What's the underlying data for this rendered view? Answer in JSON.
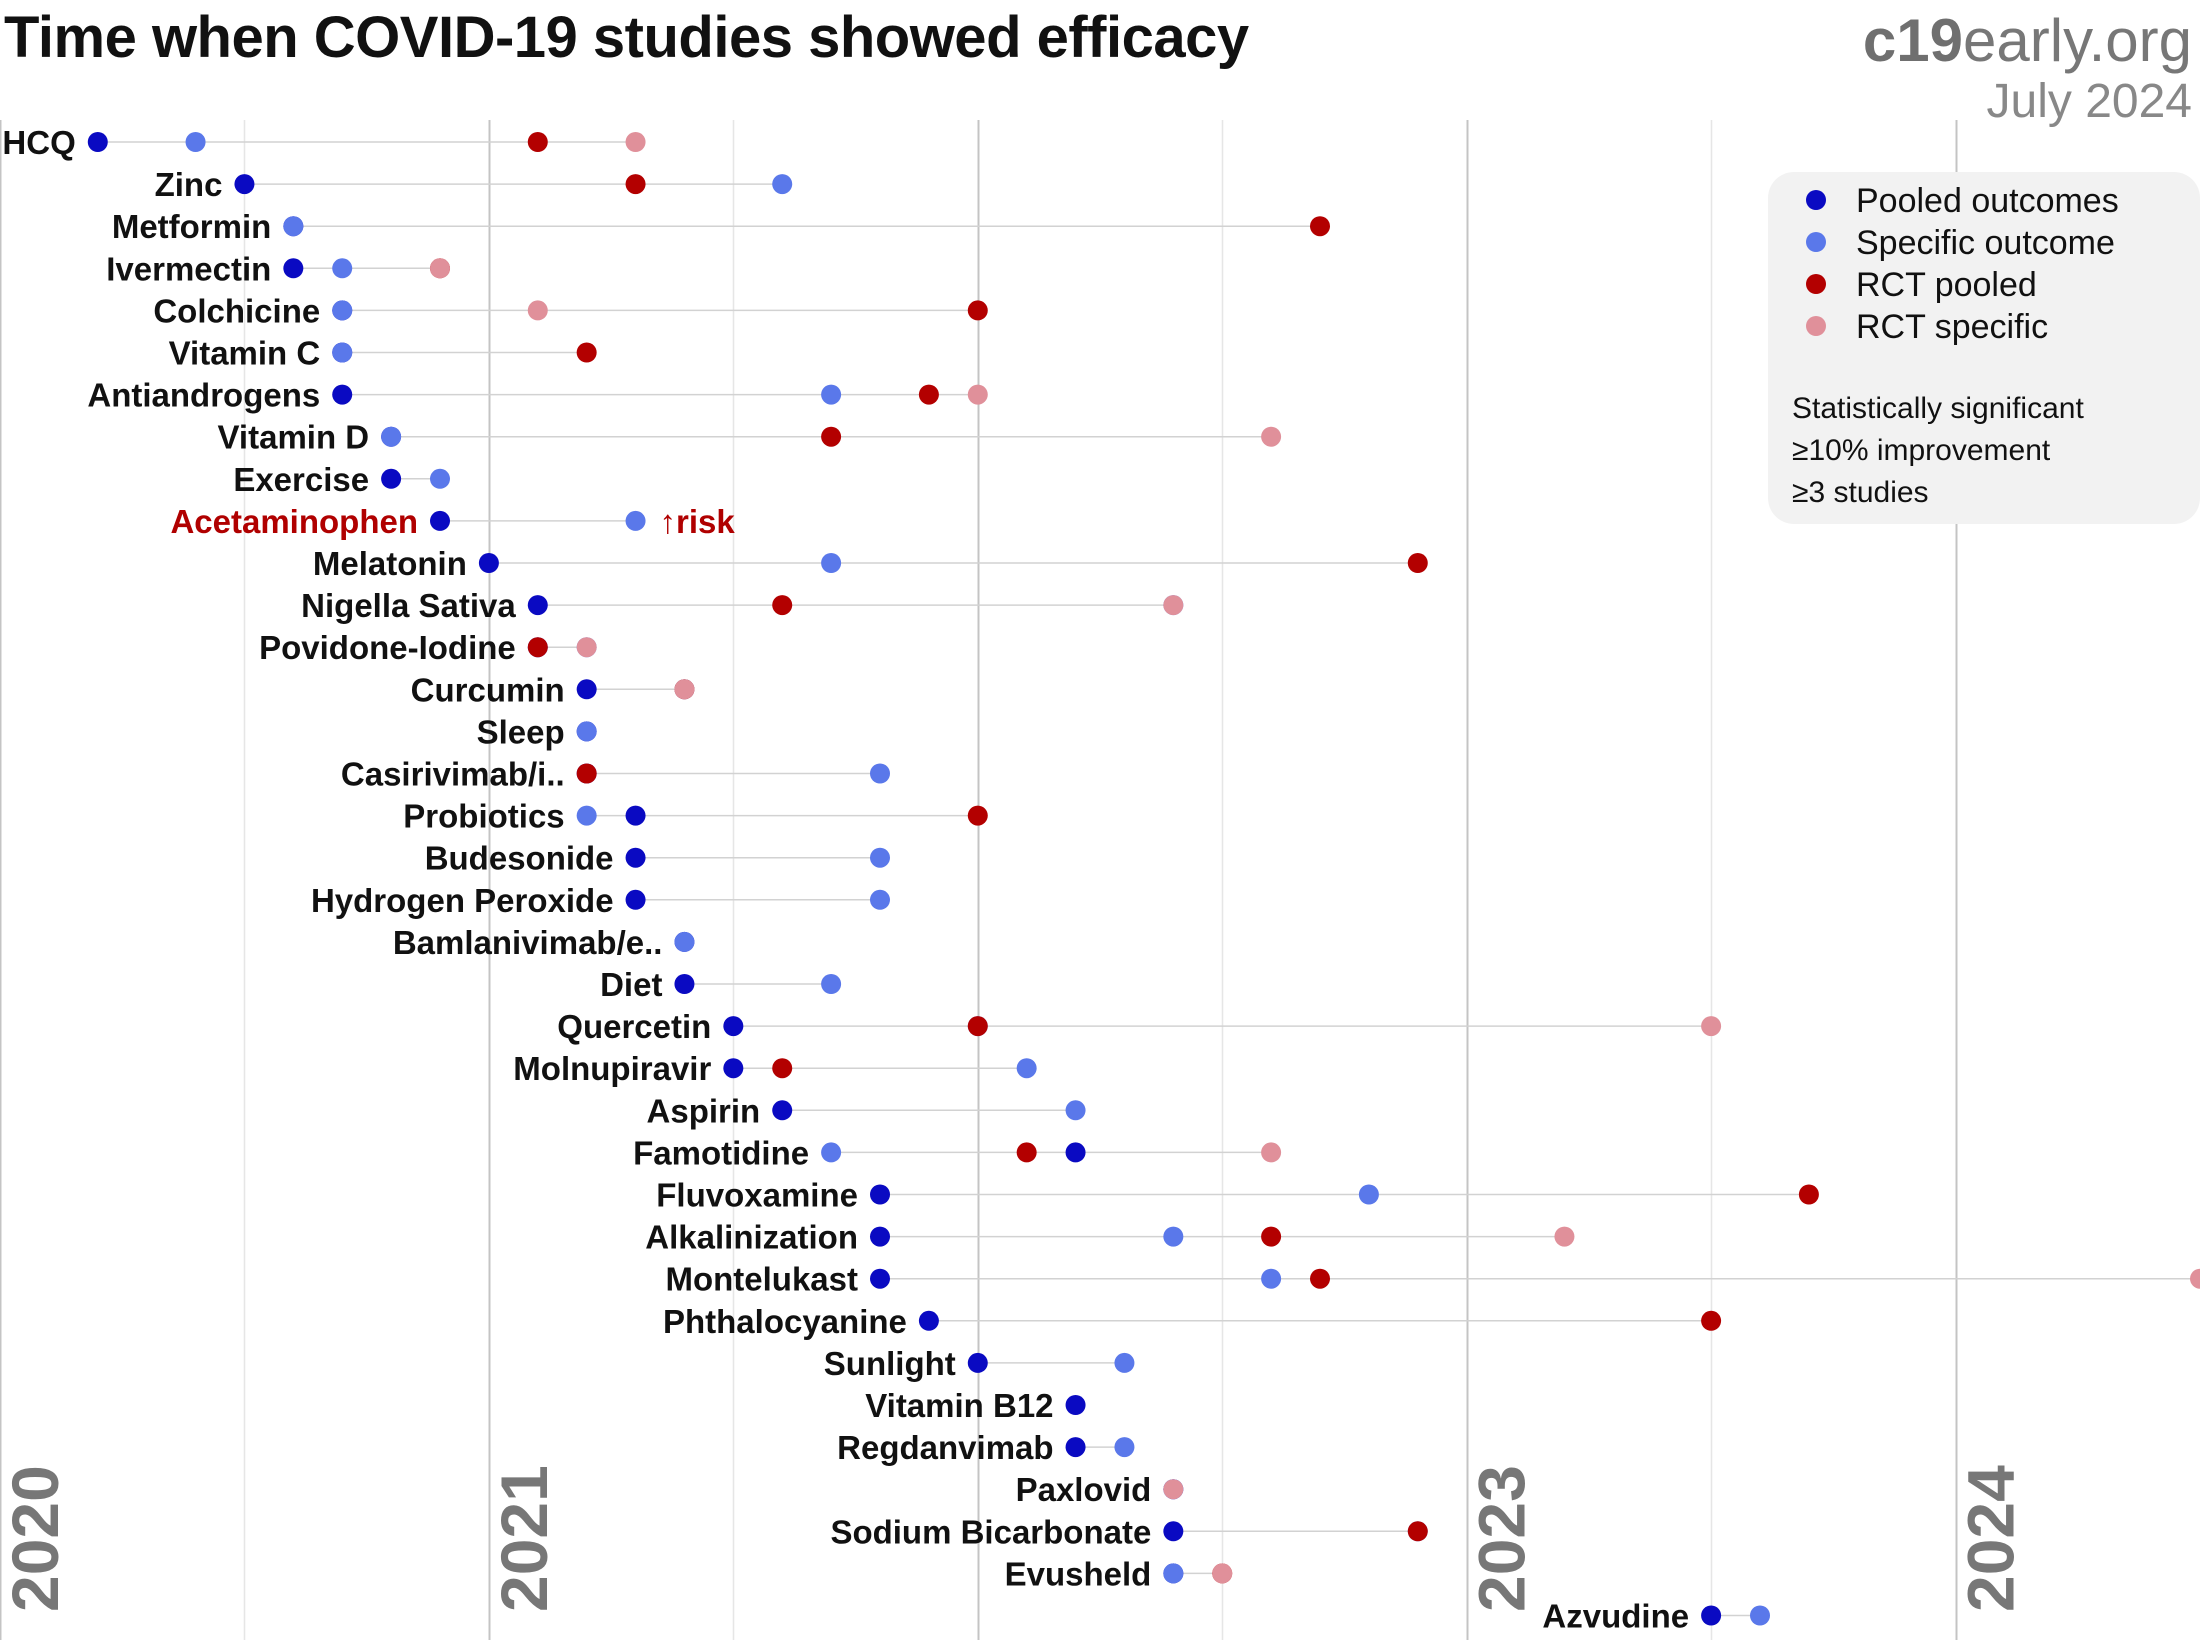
{
  "title": "Time when COVID-19 studies showed efficacy",
  "brand": {
    "bold": "c19",
    "rest": "early.org"
  },
  "date": "July 2024",
  "legend": {
    "items": [
      {
        "label": "Pooled outcomes",
        "color": "#0a0ac2"
      },
      {
        "label": "Specific outcome",
        "color": "#5a78ea"
      },
      {
        "label": "RCT pooled",
        "color": "#b30000"
      },
      {
        "label": "RCT specific",
        "color": "#e0909a"
      }
    ],
    "note": [
      "Statistically significant",
      "≥10% improvement",
      "≥3 studies"
    ]
  },
  "chart_data": {
    "type": "scatter",
    "title": "Time when COVID-19 studies showed efficacy",
    "x_unit": "year (decimal)",
    "xlim": [
      2020.0,
      2024.5
    ],
    "year_labels": [
      "2020",
      "2021",
      "2023",
      "2024"
    ],
    "year_label_positions": [
      2020,
      2021,
      2023,
      2024
    ],
    "gridlines": [
      2020,
      2020.5,
      2021,
      2021.5,
      2022,
      2022.5,
      2023,
      2023.5,
      2024
    ],
    "series_colors": {
      "pooled": "#0a0ac2",
      "specific": "#5a78ea",
      "rct_pooled": "#b30000",
      "rct_specific": "#e0909a"
    },
    "annotation": {
      "text": "↑risk",
      "row": "Acetaminophen",
      "color": "#b00000"
    },
    "rows": [
      {
        "name": "HCQ",
        "pooled": 2020.2,
        "specific": 2020.4,
        "rct_pooled": 2021.1,
        "rct_specific": 2021.3
      },
      {
        "name": "Zinc",
        "pooled": 2020.5,
        "specific": 2021.6,
        "rct_pooled": 2021.3
      },
      {
        "name": "Metformin",
        "pooled": 2020.6,
        "specific": 2020.6,
        "rct_pooled": 2022.7
      },
      {
        "name": "Ivermectin",
        "pooled": 2020.6,
        "specific": 2020.7,
        "rct_pooled": 2020.9,
        "rct_specific": 2020.9
      },
      {
        "name": "Colchicine",
        "pooled": 2020.7,
        "specific": 2020.7,
        "rct_pooled": 2022.0,
        "rct_specific": 2021.1
      },
      {
        "name": "Vitamin C",
        "pooled": 2020.7,
        "specific": 2020.7,
        "rct_pooled": 2021.2
      },
      {
        "name": "Antiandrogens",
        "pooled": 2020.7,
        "specific": 2021.7,
        "rct_pooled": 2021.9,
        "rct_specific": 2022.0
      },
      {
        "name": "Vitamin D",
        "pooled": 2020.8,
        "specific": 2020.8,
        "rct_pooled": 2021.7,
        "rct_specific": 2022.6
      },
      {
        "name": "Exercise",
        "pooled": 2020.8,
        "specific": 2020.9
      },
      {
        "name": "Acetaminophen",
        "pooled": 2020.9,
        "specific": 2021.3,
        "harm": true
      },
      {
        "name": "Melatonin",
        "pooled": 2021.0,
        "specific": 2021.7,
        "rct_pooled": 2022.9
      },
      {
        "name": "Nigella Sativa",
        "pooled": 2021.1,
        "specific": 2022.4,
        "rct_pooled": 2021.6,
        "rct_specific": 2022.4
      },
      {
        "name": "Povidone-Iodine",
        "pooled": 2021.1,
        "specific": 2021.2,
        "rct_pooled": 2021.1,
        "rct_specific": 2021.2
      },
      {
        "name": "Curcumin",
        "pooled": 2021.2,
        "specific": 2021.4,
        "rct_pooled": 2021.4,
        "rct_specific": 2021.4
      },
      {
        "name": "Sleep",
        "pooled": 2021.2,
        "specific": 2021.2
      },
      {
        "name": "Casirivimab/i..",
        "pooled": 2021.2,
        "specific": 2021.8,
        "rct_pooled": 2021.2
      },
      {
        "name": "Probiotics",
        "pooled": 2021.3,
        "specific": 2021.2,
        "rct_pooled": 2022.0
      },
      {
        "name": "Budesonide",
        "pooled": 2021.3,
        "specific": 2021.8
      },
      {
        "name": "Hydrogen Peroxide",
        "pooled": 2021.3,
        "specific": 2021.8
      },
      {
        "name": "Bamlanivimab/e..",
        "pooled": 2021.4,
        "specific": 2021.4
      },
      {
        "name": "Diet",
        "pooled": 2021.4,
        "specific": 2021.7
      },
      {
        "name": "Quercetin",
        "pooled": 2021.5,
        "specific": 2022.0,
        "rct_pooled": 2022.0,
        "rct_specific": 2023.5
      },
      {
        "name": "Molnupiravir",
        "pooled": 2021.5,
        "specific": 2022.1,
        "rct_pooled": 2021.6
      },
      {
        "name": "Aspirin",
        "pooled": 2021.6,
        "specific": 2022.2
      },
      {
        "name": "Famotidine",
        "pooled": 2022.2,
        "specific": 2021.7,
        "rct_pooled": 2022.1,
        "rct_specific": 2022.6
      },
      {
        "name": "Fluvoxamine",
        "pooled": 2021.8,
        "specific": 2022.8,
        "rct_pooled": 2023.7
      },
      {
        "name": "Alkalinization",
        "pooled": 2021.8,
        "specific": 2022.4,
        "rct_pooled": 2022.6,
        "rct_specific": 2023.2
      },
      {
        "name": "Montelukast",
        "pooled": 2021.8,
        "specific": 2022.6,
        "rct_pooled": 2022.7,
        "rct_specific": 2024.5
      },
      {
        "name": "Phthalocyanine",
        "pooled": 2021.9,
        "rct_pooled": 2023.5
      },
      {
        "name": "Sunlight",
        "pooled": 2022.0,
        "specific": 2022.3
      },
      {
        "name": "Vitamin B12",
        "pooled": 2022.2
      },
      {
        "name": "Regdanvimab",
        "pooled": 2022.2,
        "specific": 2022.3
      },
      {
        "name": "Paxlovid",
        "pooled": 2022.4,
        "specific": 2022.4,
        "rct_specific": 2022.4
      },
      {
        "name": "Sodium Bicarbonate",
        "pooled": 2022.4,
        "specific": 2022.9,
        "rct_pooled": 2022.9
      },
      {
        "name": "Evusheld",
        "pooled": 2022.4,
        "specific": 2022.4,
        "rct_pooled": 2022.5,
        "rct_specific": 2022.5
      },
      {
        "name": "Azvudine",
        "pooled": 2023.5,
        "specific": 2023.6
      }
    ]
  }
}
